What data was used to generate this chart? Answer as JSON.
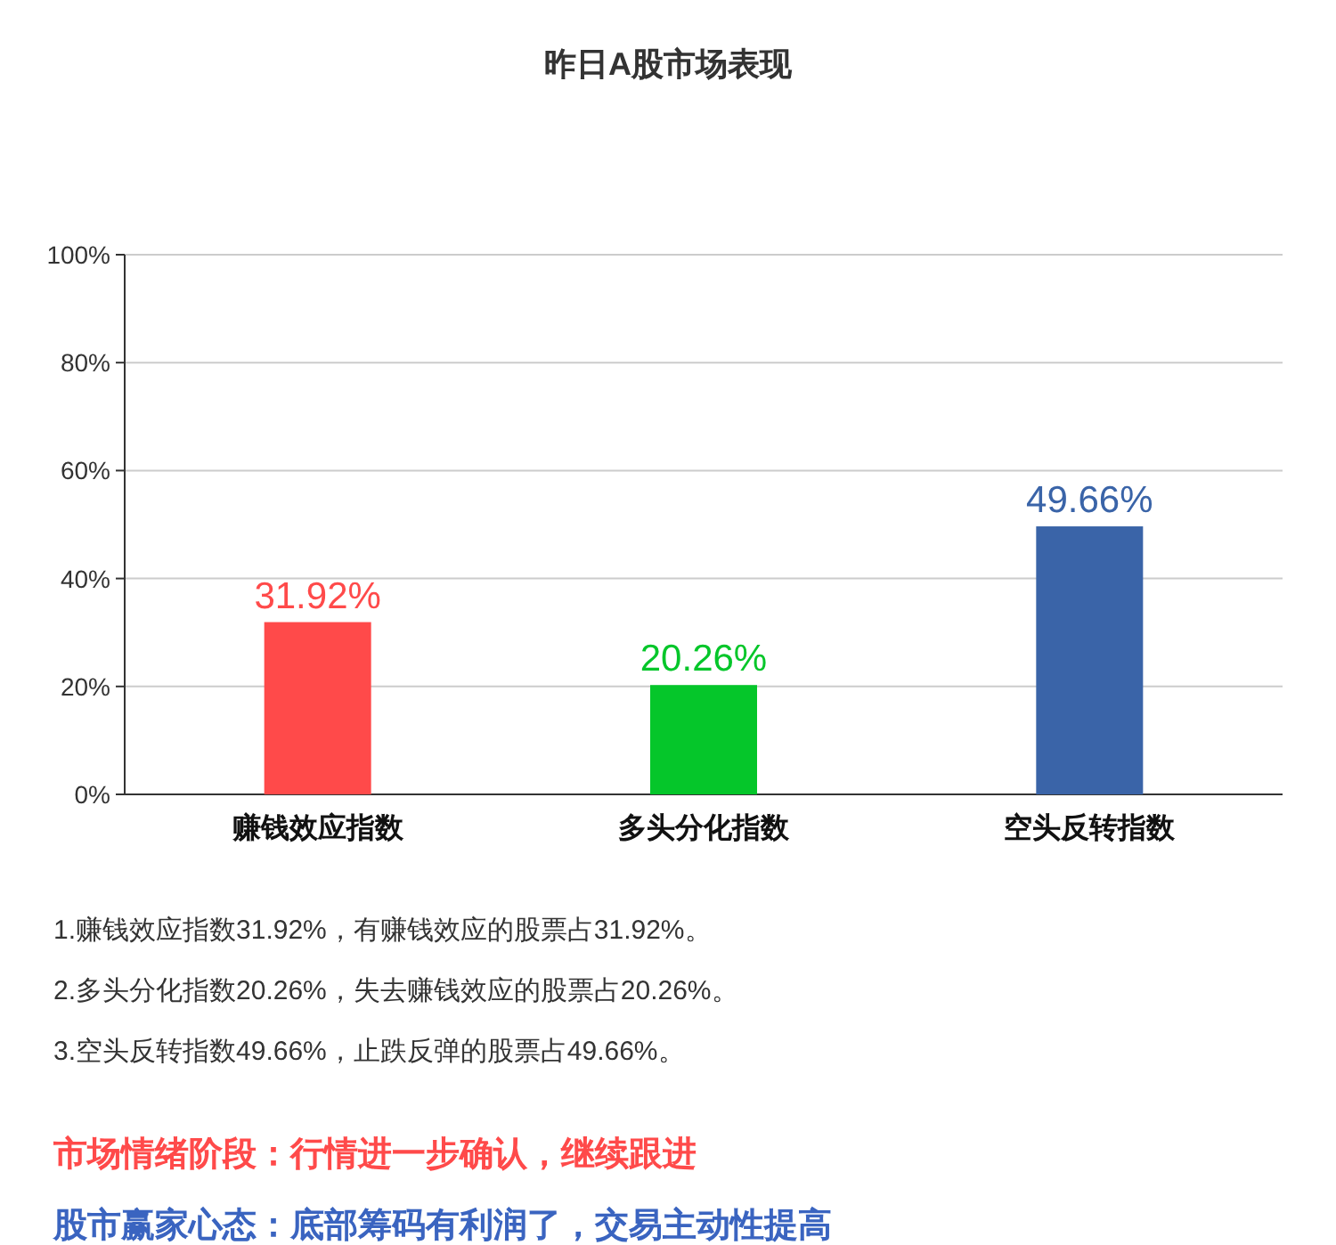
{
  "chart_data": {
    "type": "bar",
    "title": "昨日A股市场表现",
    "categories": [
      "赚钱效应指数",
      "多头分化指数",
      "空头反转指数"
    ],
    "values": [
      31.92,
      20.26,
      49.66
    ],
    "colors": [
      "#ff4a4a",
      "#05c62a",
      "#3a64a8"
    ],
    "value_labels": [
      "31.92%",
      "20.26%",
      "49.66%"
    ],
    "ylim": [
      0,
      100
    ],
    "yticks": [
      {
        "value": 0,
        "label": "0%"
      },
      {
        "value": 20,
        "label": "20%"
      },
      {
        "value": 40,
        "label": "40%"
      },
      {
        "value": 60,
        "label": "60%"
      },
      {
        "value": 80,
        "label": "80%"
      },
      {
        "value": 100,
        "label": "100%"
      }
    ],
    "grid": "y",
    "annotations": [
      "1.赚钱效应指数31.92%，有赚钱效应的股票占31.92%。",
      "2.多头分化指数20.26%，失去赚钱效应的股票占20.26%。",
      "3.空头反转指数49.66%，止跌反弹的股票占49.66%。",
      "市场情绪阶段：行情进一步确认，继续跟进",
      "股市赢家心态：底部筹码有利润了，交易主动性提高"
    ]
  }
}
